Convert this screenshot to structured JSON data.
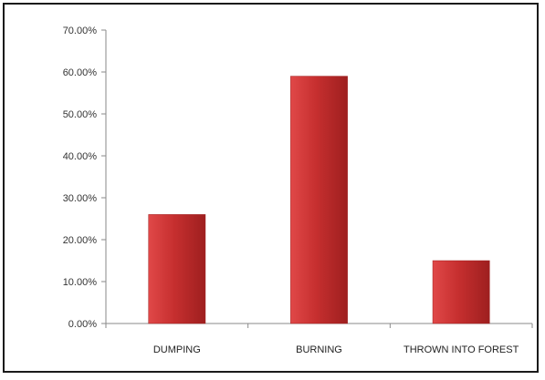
{
  "chart_data": {
    "type": "bar",
    "categories": [
      "DUMPING",
      "BURNING",
      "THROWN INTO FOREST"
    ],
    "values": [
      0.26,
      0.59,
      0.15
    ],
    "ylim": [
      0,
      0.7
    ],
    "yticks": [
      "0.00%",
      "10.00%",
      "20.00%",
      "30.00%",
      "40.00%",
      "50.00%",
      "60.00%",
      "70.00%"
    ],
    "ytick_values": [
      0,
      0.1,
      0.2,
      0.3,
      0.4,
      0.5,
      0.6,
      0.7
    ],
    "grid": false,
    "legend": "none",
    "colors": {
      "bar_light": "#e04848",
      "bar_main": "#c62f2f",
      "bar_dark": "#9e1f1f",
      "axis": "#8a8a8a",
      "frame": "#1a1a1a"
    }
  }
}
